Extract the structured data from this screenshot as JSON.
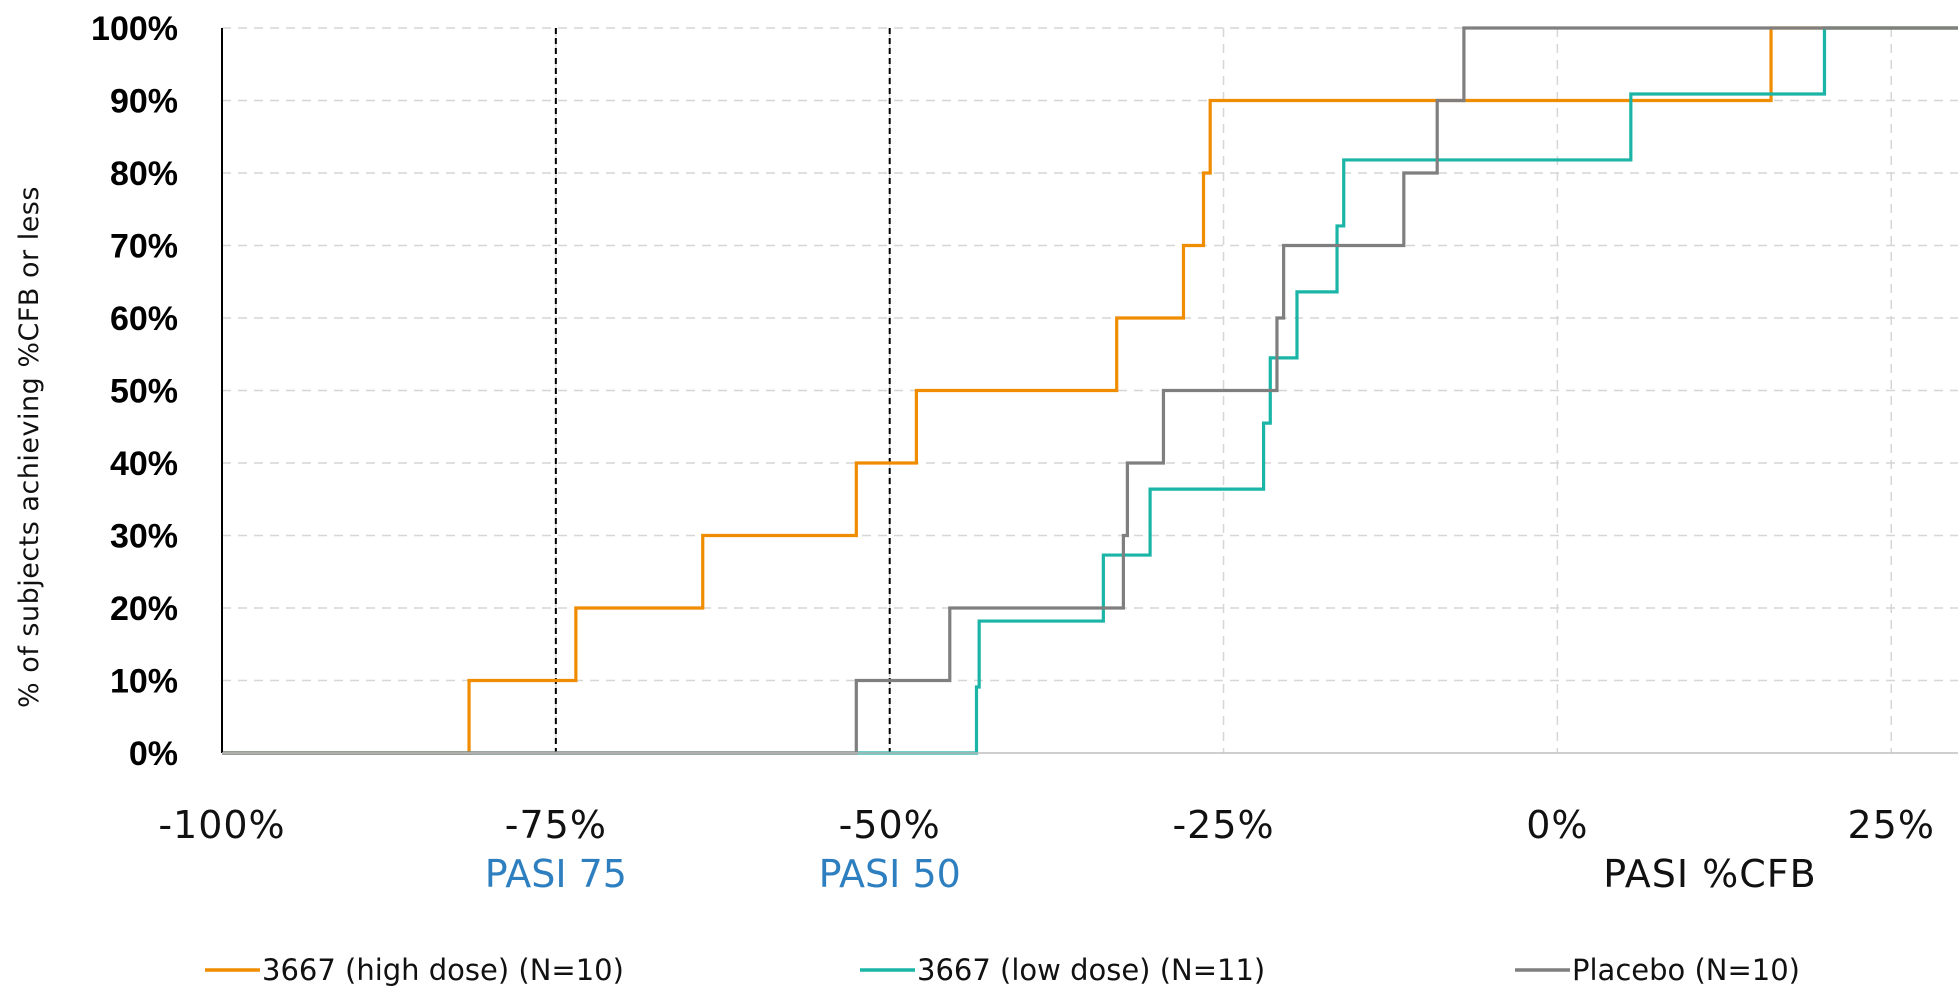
{
  "chart_data": {
    "type": "line",
    "subtype": "step",
    "title": "",
    "ylabel": "% of subjects achieving %CFB or less",
    "xlabel": "PASI %CFB",
    "xlim": [
      -100,
      30
    ],
    "ylim": [
      0,
      100
    ],
    "x_ticks": [
      -100,
      -75,
      -50,
      -25,
      0,
      25
    ],
    "x_tick_labels": [
      "-100%",
      "-75%",
      "-50%",
      "-25%",
      "0%",
      "25%"
    ],
    "y_ticks": [
      0,
      10,
      20,
      30,
      40,
      50,
      60,
      70,
      80,
      90,
      100
    ],
    "y_tick_labels": [
      "0%",
      "10%",
      "20%",
      "30%",
      "40%",
      "50%",
      "60%",
      "70%",
      "80%",
      "90%",
      "100%"
    ],
    "grid": true,
    "legend_position": "bottom",
    "reference_lines": [
      {
        "x": -75,
        "label": "PASI 75"
      },
      {
        "x": -50,
        "label": "PASI 50"
      }
    ],
    "series": [
      {
        "name": "3667 (high dose) (N=10)",
        "color": "#f08c00",
        "x": [
          -81.5,
          -73.5,
          -64,
          -52.5,
          -48,
          -33,
          -28,
          -26.5,
          -26,
          16,
          30
        ],
        "y": [
          10,
          20,
          30,
          40,
          50,
          60,
          70,
          80,
          90,
          100,
          100
        ]
      },
      {
        "name": "3667 (low dose) (N=11)",
        "color": "#1ab5a6",
        "x": [
          -43.5,
          -43.3,
          -34,
          -30.5,
          -22,
          -21.5,
          -21,
          -19.5,
          -16.5,
          -16,
          5.5,
          20,
          30
        ],
        "y": [
          9.1,
          18.2,
          27.3,
          36.4,
          45.5,
          54.5,
          54.5,
          63.6,
          72.7,
          81.8,
          90.9,
          100,
          100
        ]
      },
      {
        "name": "Placebo (N=10)",
        "color": "#7f7f7f",
        "x": [
          -52.5,
          -45.5,
          -32.5,
          -32.2,
          -29.5,
          -21,
          -20.5,
          -11.5,
          -9,
          -7,
          30
        ],
        "y": [
          10,
          20,
          30,
          40,
          50,
          60,
          70,
          80,
          90,
          100,
          100
        ]
      }
    ]
  }
}
